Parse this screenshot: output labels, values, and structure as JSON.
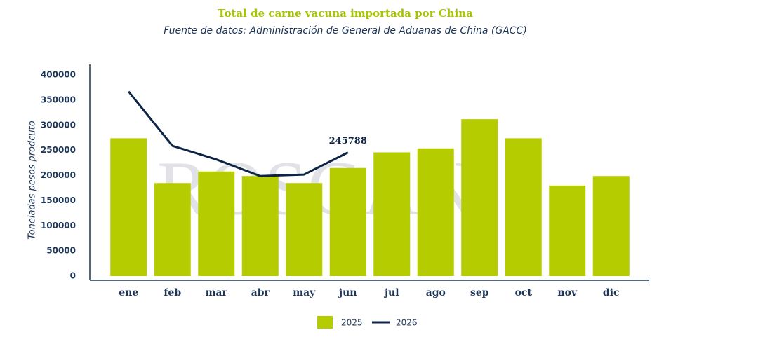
{
  "chart_data": {
    "type": "bar",
    "title": "Total de carne vacuna importada por China",
    "subtitle": "Fuente de datos: Administración de General de Aduanas de China (GACC)",
    "watermark": "ROSGAN",
    "y_label": "Toneladas pesos prodcuto",
    "categories": [
      "ene",
      "feb",
      "mar",
      "abr",
      "may",
      "jun",
      "jul",
      "ago",
      "sep",
      "oct",
      "nov",
      "dic"
    ],
    "series": [
      {
        "name": "2025",
        "type": "bar",
        "color": "#b5cc00",
        "values": [
          274000,
          185000,
          208000,
          199000,
          185000,
          215000,
          246000,
          254000,
          312000,
          274000,
          180000,
          199000
        ]
      },
      {
        "name": "2026",
        "type": "line",
        "color": "#0d2445",
        "values": [
          367000,
          259000,
          232000,
          199000,
          202000,
          245788,
          null,
          null,
          null,
          null,
          null,
          null
        ],
        "labeled_point": 5
      }
    ],
    "ylim": [
      0,
      400000
    ],
    "yticks": [
      0,
      50000,
      100000,
      150000,
      200000,
      250000,
      300000,
      350000,
      400000
    ]
  }
}
